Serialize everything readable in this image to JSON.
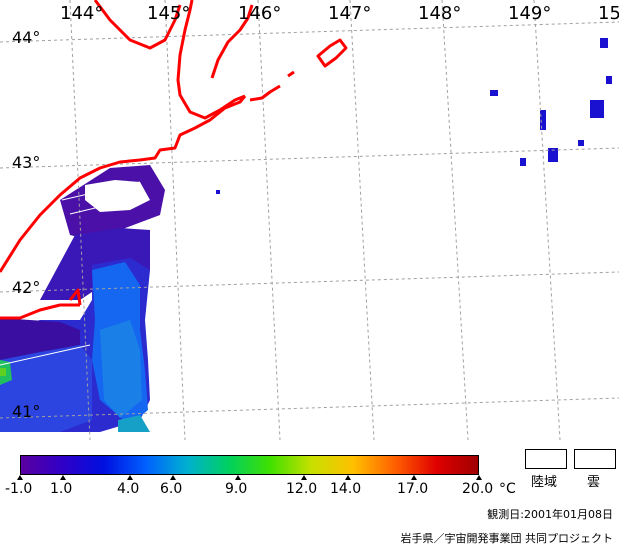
{
  "map": {
    "longitude_labels": [
      "144°",
      "145°",
      "146°",
      "147°",
      "148°",
      "149°",
      "15"
    ],
    "latitude_labels": [
      "44°",
      "43°",
      "42°",
      "41°"
    ]
  },
  "colorbar": {
    "ticks": [
      "-1.0",
      "1.0",
      "4.0",
      "6.0",
      "9.0",
      "12.0",
      "14.0",
      "17.0",
      "20.0"
    ],
    "unit": "°C",
    "gradient_colors": [
      "#5a00a0",
      "#3000c8",
      "#0010e0",
      "#0060ff",
      "#00b0d0",
      "#00d060",
      "#40e000",
      "#c8e000",
      "#ffc000",
      "#ff6000",
      "#e00000",
      "#a00000"
    ]
  },
  "legend": {
    "land_label": "陸域",
    "cloud_label": "雲"
  },
  "observation_date": "観測日:2001年01月08日",
  "credit": "岩手県／宇宙開発事業団 共同プロジェクト",
  "colors": {
    "coastline": "#ff0000",
    "grid": "#a0a0a0"
  }
}
